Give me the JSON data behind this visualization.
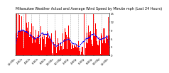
{
  "title": "Milwaukee Weather Actual and Average Wind Speed by Minute mph (Last 24 Hours)",
  "background_color": "#ffffff",
  "plot_bg_color": "#ffffff",
  "bar_color": "#ff0000",
  "line_color": "#0000ff",
  "grid_color": "#b0b0b0",
  "ylim": [
    0,
    15
  ],
  "n_points": 1440,
  "seed": 42,
  "title_fontsize": 3.5,
  "tick_fontsize": 2.8,
  "y_ticks": [
    0,
    3,
    6,
    9,
    12,
    15
  ],
  "n_xticks": 13,
  "time_labels": [
    "12:00a",
    "2:00a",
    "4:00a",
    "6:00a",
    "8:00a",
    "10:00a",
    "12:00p",
    "2:00p",
    "4:00p",
    "6:00p",
    "8:00p",
    "10:00p",
    "12:00a"
  ]
}
